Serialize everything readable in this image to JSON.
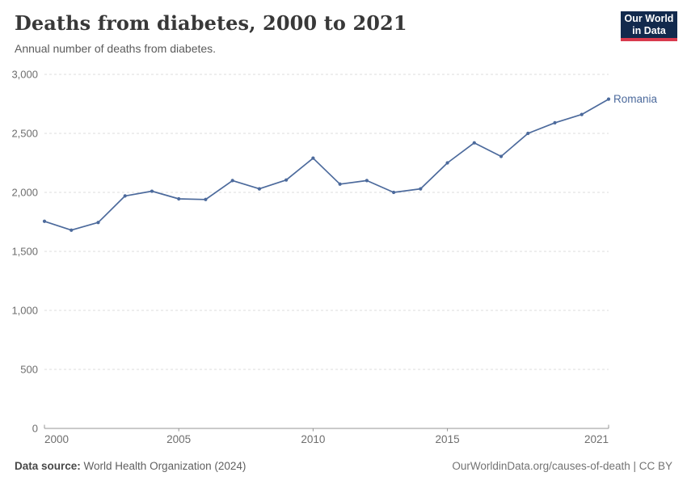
{
  "header": {
    "title": "Deaths from diabetes, 2000 to 2021",
    "subtitle": "Annual number of deaths from diabetes.",
    "logo": {
      "line1": "Our World",
      "line2": "in Data"
    }
  },
  "footer": {
    "source_label": "Data source:",
    "source_value": " World Health Organization (2024)",
    "credit": "OurWorldinData.org/causes-of-death | CC BY"
  },
  "chart_data": {
    "type": "line",
    "title": "Deaths from diabetes, 2000 to 2021",
    "subtitle": "Annual number of deaths from diabetes.",
    "xlabel": "",
    "ylabel": "",
    "x": [
      2000,
      2001,
      2002,
      2003,
      2004,
      2005,
      2006,
      2007,
      2008,
      2009,
      2010,
      2011,
      2012,
      2013,
      2014,
      2015,
      2016,
      2017,
      2018,
      2019,
      2020,
      2021
    ],
    "series": [
      {
        "name": "Romania",
        "color": "#4c6a9c",
        "values": [
          1755,
          1680,
          1745,
          1970,
          2010,
          1945,
          1940,
          2100,
          2030,
          2105,
          2290,
          2070,
          2100,
          2000,
          2030,
          2250,
          2420,
          2305,
          2500,
          2590,
          2660,
          2790
        ]
      }
    ],
    "xlim": [
      2000,
      2021
    ],
    "ylim": [
      0,
      3000
    ],
    "yticks": [
      0,
      500,
      1000,
      1500,
      2000,
      2500,
      3000
    ],
    "ytick_labels": [
      "0",
      "500",
      "1,000",
      "1,500",
      "2,000",
      "2,500",
      "3,000"
    ],
    "xticks": [
      2000,
      2005,
      2010,
      2015,
      2021
    ],
    "xtick_labels": [
      "2000",
      "2005",
      "2010",
      "2015",
      "2021"
    ],
    "grid": "horizontal-dashed",
    "legend_position": "end-of-line-label",
    "colors": {
      "line": "#4c6a9c",
      "entity_label": "#4c6a9c",
      "gridline": "#dcdcdc",
      "axis_line": "#949494",
      "tick_label": "#6e6e6e"
    }
  }
}
